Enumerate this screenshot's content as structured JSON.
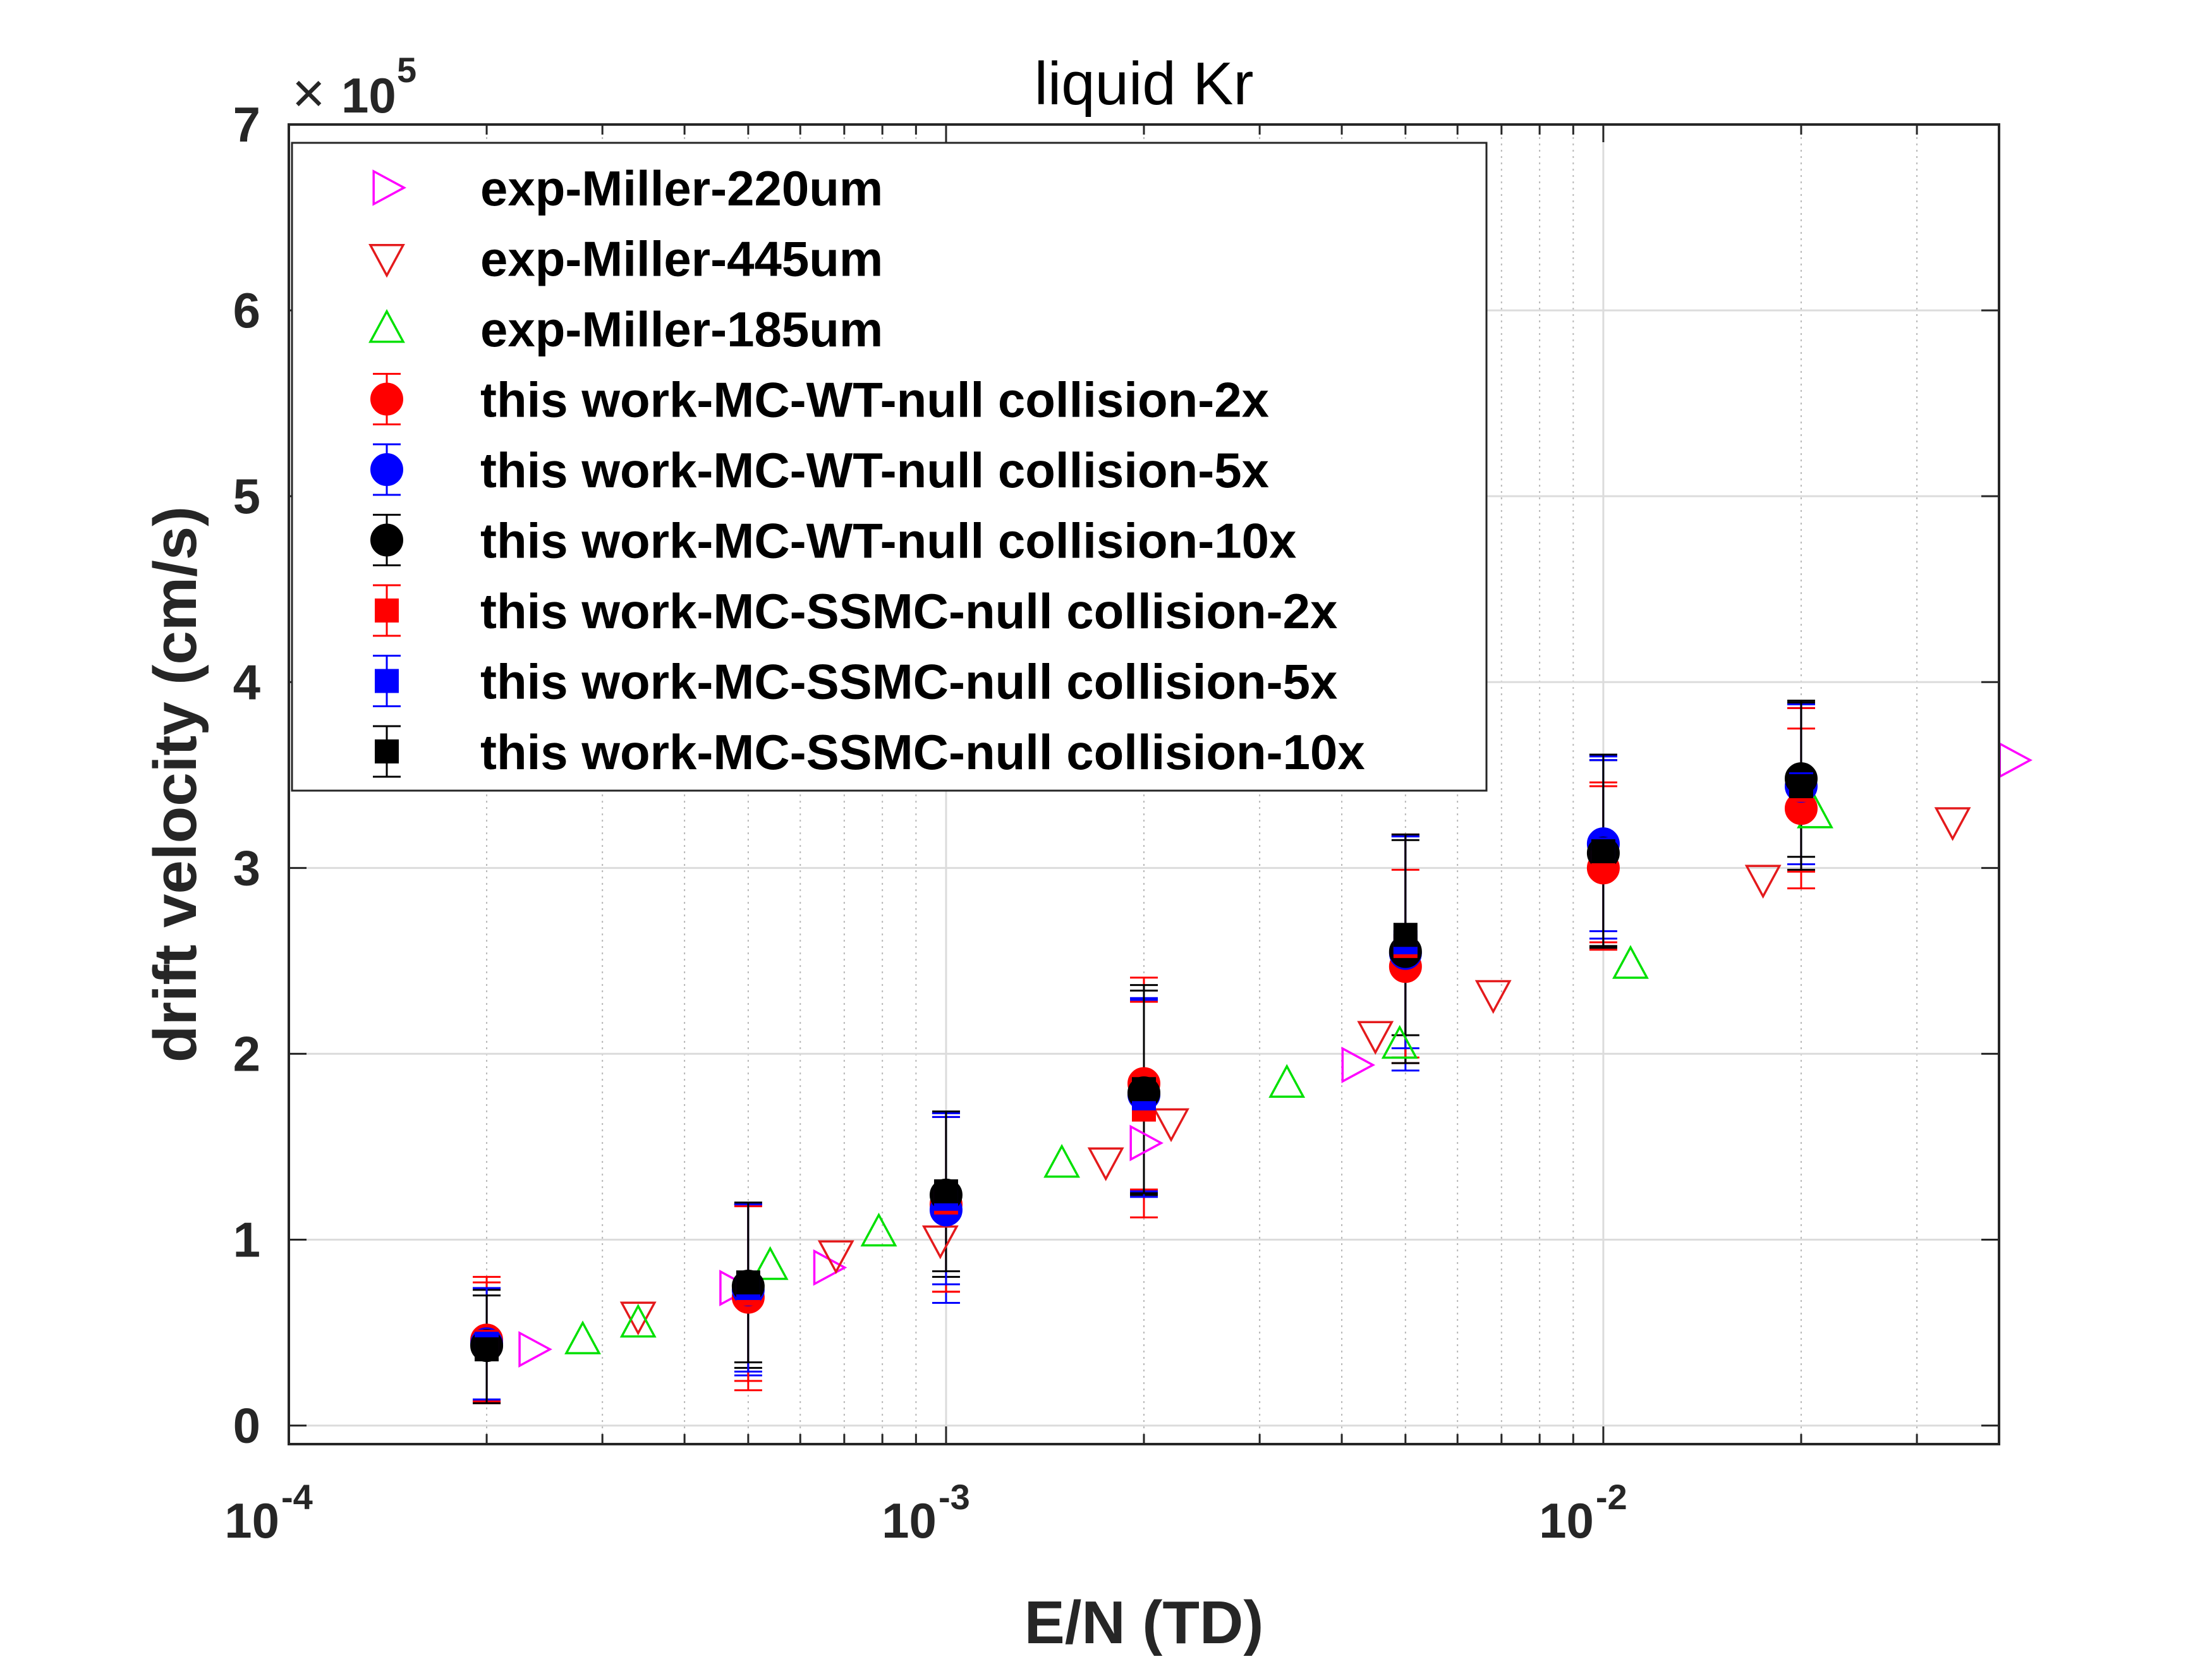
{
  "chart_data": {
    "type": "scatter",
    "title": "liquid Kr",
    "xlabel": "E/N (TD)",
    "ylabel": "drift velocity (cm/s)",
    "xscale": "log",
    "xlim": [
      0.0001,
      0.04
    ],
    "ylim": [
      -0.1,
      7
    ],
    "y_multiplier_base": "10",
    "y_multiplier_exp": "5",
    "y_ticks": [
      0,
      1,
      2,
      3,
      4,
      5,
      6,
      7
    ],
    "y_tick_labels": [
      "0",
      "1",
      "2",
      "3",
      "4",
      "5",
      "6",
      "7"
    ],
    "x_ticks": [
      0.0001,
      0.001,
      0.01
    ],
    "x_tick_labels": [
      {
        "base": "10",
        "exp": "-4"
      },
      {
        "base": "10",
        "exp": "-3"
      },
      {
        "base": "10",
        "exp": "-2"
      }
    ],
    "grid": true,
    "legend_position": "top-left",
    "series": [
      {
        "name": "exp-Miller-220um",
        "marker": "triangle-right",
        "color": "#ff00ff",
        "points": [
          [
            0.000235,
            0.41
          ],
          [
            0.000475,
            0.74
          ],
          [
            0.00066,
            0.85
          ],
          [
            0.002,
            1.52
          ],
          [
            0.0042,
            1.94
          ],
          [
            0.042,
            3.58
          ]
        ]
      },
      {
        "name": "exp-Miller-445um",
        "marker": "triangle-down",
        "color": "#e41a1c",
        "points": [
          [
            0.00034,
            0.59
          ],
          [
            0.00068,
            0.92
          ],
          [
            0.00098,
            1.0
          ],
          [
            0.00175,
            1.42
          ],
          [
            0.0022,
            1.63
          ],
          [
            0.0045,
            2.1
          ],
          [
            0.0068,
            2.32
          ],
          [
            0.0175,
            2.94
          ],
          [
            0.034,
            3.25
          ]
        ]
      },
      {
        "name": "exp-Miller-185um",
        "marker": "triangle-up",
        "color": "#00e000",
        "points": [
          [
            0.00028,
            0.46
          ],
          [
            0.00034,
            0.55
          ],
          [
            0.00054,
            0.86
          ],
          [
            0.00079,
            1.04
          ],
          [
            0.0015,
            1.41
          ],
          [
            0.0033,
            1.84
          ],
          [
            0.0049,
            2.05
          ],
          [
            0.011,
            2.48
          ],
          [
            0.021,
            3.29
          ]
        ]
      },
      {
        "name": "this work-MC-WT-null collision-2x",
        "marker": "circle",
        "color": "#ff0000",
        "points": [
          [
            0.0002,
            0.46,
            0.34
          ],
          [
            0.0005,
            0.69,
            0.5
          ],
          [
            0.001,
            1.19,
            0.47
          ],
          [
            0.002,
            1.84,
            0.57
          ],
          [
            0.005,
            2.47,
            0.52
          ],
          [
            0.01,
            3.0,
            0.44
          ],
          [
            0.02,
            3.32,
            0.43
          ]
        ]
      },
      {
        "name": "this work-MC-WT-null collision-5x",
        "marker": "circle",
        "color": "#0000ff",
        "points": [
          [
            0.0002,
            0.44,
            0.3
          ],
          [
            0.0005,
            0.73,
            0.46
          ],
          [
            0.001,
            1.16,
            0.5
          ],
          [
            0.002,
            1.78,
            0.52
          ],
          [
            0.005,
            2.54,
            0.63
          ],
          [
            0.01,
            3.13,
            0.47
          ],
          [
            0.02,
            3.44,
            0.42
          ]
        ]
      },
      {
        "name": "this work-MC-WT-null collision-10x",
        "marker": "circle",
        "color": "#000000",
        "points": [
          [
            0.0002,
            0.43,
            0.3
          ],
          [
            0.0005,
            0.75,
            0.44
          ],
          [
            0.001,
            1.24,
            0.44
          ],
          [
            0.002,
            1.79,
            0.55
          ],
          [
            0.005,
            2.55,
            0.6
          ],
          [
            0.01,
            3.08,
            0.5
          ],
          [
            0.02,
            3.48,
            0.42
          ]
        ]
      },
      {
        "name": "this work-MC-SSMC-null collision-2x",
        "marker": "square",
        "color": "#ff0000",
        "points": [
          [
            0.0002,
            0.45,
            0.32
          ],
          [
            0.0005,
            0.71,
            0.47
          ],
          [
            0.001,
            1.2,
            0.48
          ],
          [
            0.002,
            1.7,
            0.58
          ],
          [
            0.005,
            2.58,
            0.6
          ],
          [
            0.01,
            3.03,
            0.43
          ],
          [
            0.02,
            3.42,
            0.44
          ]
        ]
      },
      {
        "name": "this work-MC-SSMC-null collision-5x",
        "marker": "square",
        "color": "#0000ff",
        "points": [
          [
            0.0002,
            0.44,
            0.3
          ],
          [
            0.0005,
            0.74,
            0.45
          ],
          [
            0.001,
            1.22,
            0.46
          ],
          [
            0.002,
            1.76,
            0.53
          ],
          [
            0.005,
            2.6,
            0.57
          ],
          [
            0.01,
            3.1,
            0.48
          ],
          [
            0.02,
            3.45,
            0.43
          ]
        ]
      },
      {
        "name": "this work-MC-SSMC-null collision-10x",
        "marker": "square",
        "color": "#000000",
        "points": [
          [
            0.0002,
            0.41,
            0.29
          ],
          [
            0.0005,
            0.77,
            0.43
          ],
          [
            0.001,
            1.26,
            0.43
          ],
          [
            0.002,
            1.81,
            0.56
          ],
          [
            0.005,
            2.64,
            0.54
          ],
          [
            0.01,
            3.09,
            0.52
          ],
          [
            0.02,
            3.44,
            0.45
          ]
        ]
      }
    ]
  }
}
